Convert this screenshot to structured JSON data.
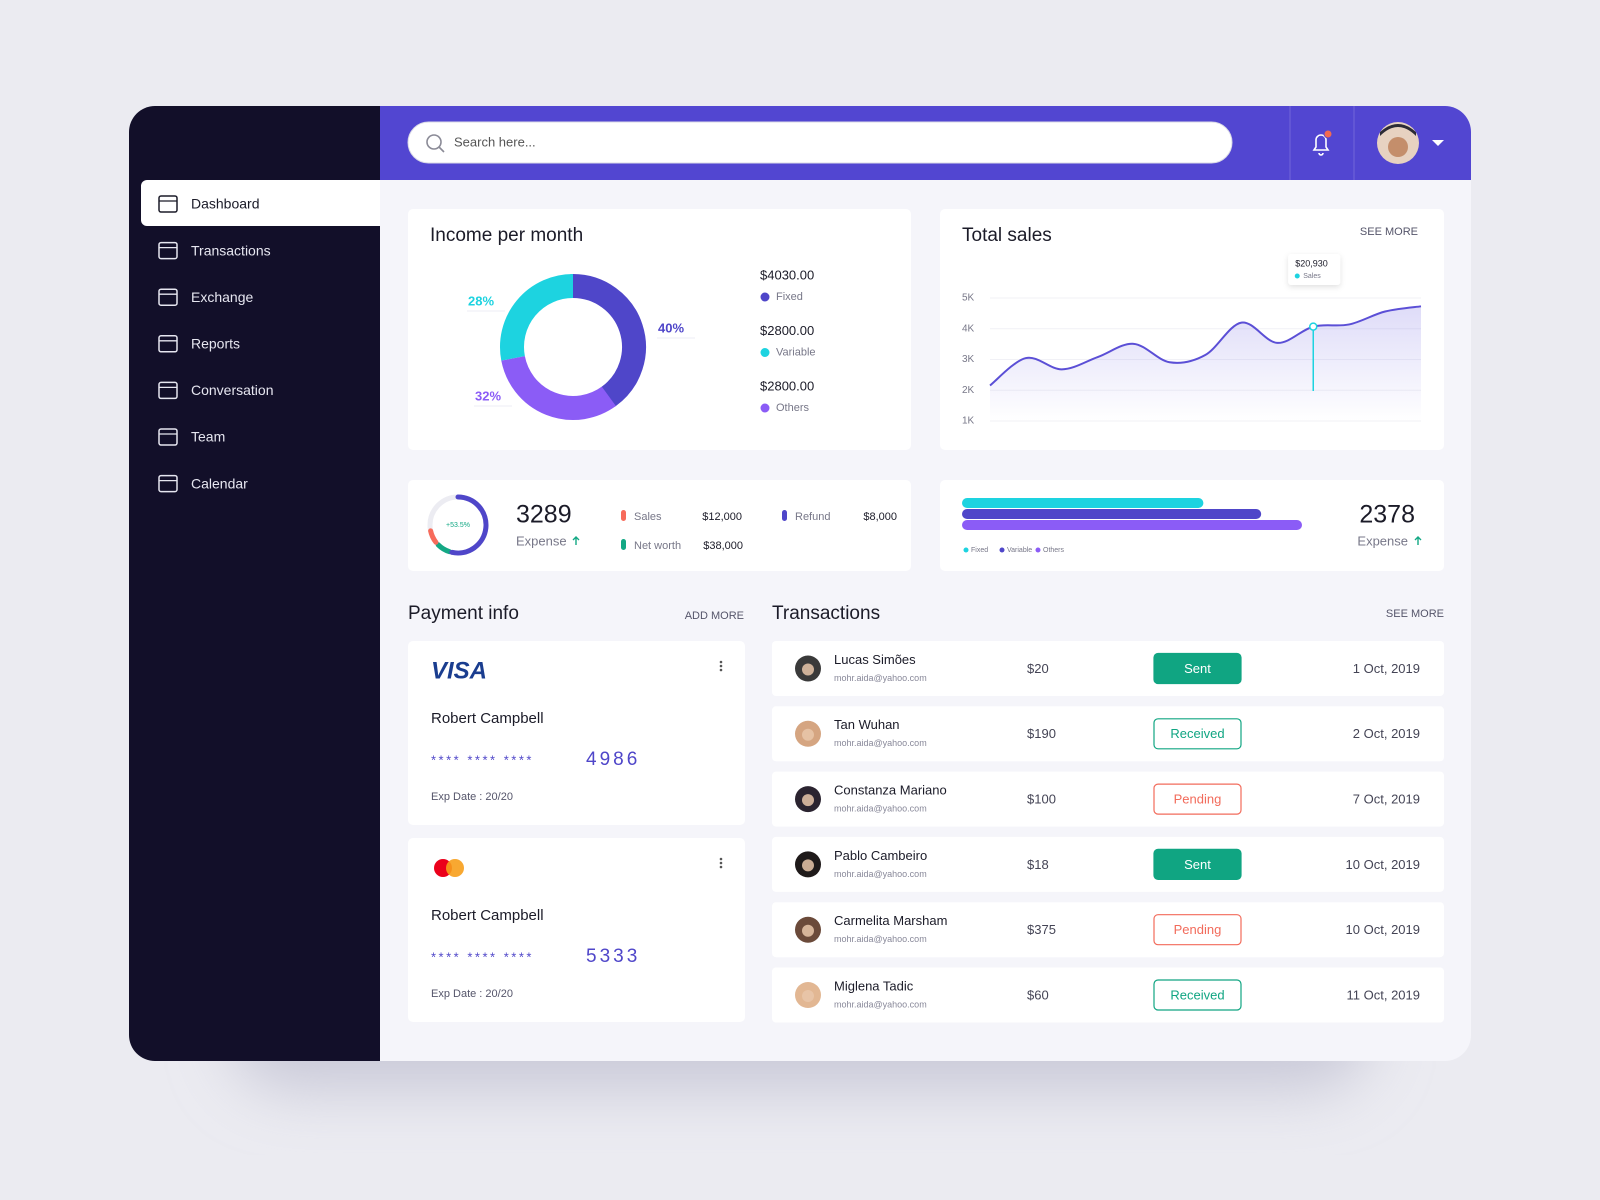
{
  "header": {
    "search_placeholder": "Search here..."
  },
  "nav": [
    {
      "label": "Dashboard",
      "active": true
    },
    {
      "label": "Transactions",
      "active": false
    },
    {
      "label": "Exchange",
      "active": false
    },
    {
      "label": "Reports",
      "active": false
    },
    {
      "label": "Conversation",
      "active": false
    },
    {
      "label": "Team",
      "active": false
    },
    {
      "label": "Calendar",
      "active": false
    }
  ],
  "chart_data": [
    {
      "type": "donut",
      "title": "Income per month",
      "categories": [
        "Fixed",
        "Variable",
        "Others"
      ],
      "values": [
        40,
        28,
        32
      ],
      "value_labels": [
        "40%",
        "28%",
        "32%"
      ],
      "amounts": [
        "$4030.00",
        "$2800.00",
        "$2800.00"
      ],
      "colors": [
        "#4f46c9",
        "#1dd3e0",
        "#8b5cf6"
      ]
    },
    {
      "type": "line",
      "title": "Total sales",
      "link": "SEE MORE",
      "categories": [
        null,
        null,
        null,
        null,
        null,
        null,
        null,
        null,
        null,
        null,
        null,
        null,
        null
      ],
      "series": [
        {
          "name": "Sales",
          "color": "#5b4fd6",
          "values": [
            2155,
            3046,
            2680,
            3080,
            3510,
            2910,
            3150,
            4200,
            3540,
            4070,
            4140,
            4560,
            4730
          ]
        }
      ],
      "ylim": [
        1000,
        5000
      ],
      "yticks": [
        {
          "value": 1000,
          "label": "1K"
        },
        {
          "value": 2000,
          "label": "2K"
        },
        {
          "value": 3000,
          "label": "3K"
        },
        {
          "value": 4000,
          "label": "4K"
        },
        {
          "value": 5000,
          "label": "5K"
        }
      ],
      "grid": true,
      "tooltip": "$20,930",
      "tooltip_color": "#1dd3e0"
    },
    {
      "type": "ring",
      "value": 53.5,
      "value_label": "+53.5%",
      "color": "#4f46c9",
      "label_color": "#13a884",
      "total": 3289,
      "total_label": "Expense",
      "items": [
        {
          "name": "Sales",
          "value": "$12,000",
          "color": "#f76b5b"
        },
        {
          "name": "Refund",
          "value": "$8,000",
          "color": "#4f46c9"
        },
        {
          "name": "Net worth",
          "value": "$38,000",
          "color": "#13a884"
        }
      ]
    },
    {
      "type": "bar",
      "orientation": "horizontal",
      "categories": [
        "Fixed",
        "Variable",
        "Others"
      ],
      "values": [
        71,
        88,
        100
      ],
      "xlim": [
        0,
        100
      ],
      "colors": [
        "#1dd3e0",
        "#4f46c9",
        "#8b5cf6"
      ],
      "total": 2378,
      "total_label": "Expense"
    }
  ],
  "payment": {
    "title": "Payment info",
    "link": "ADD MORE",
    "cards": [
      {
        "brand": "VISA",
        "holder": "Robert Campbell",
        "masked": "**** **** ****",
        "last4": "4986",
        "exp": "Exp Date : 20/20"
      },
      {
        "holder": "Robert Campbell",
        "masked": "**** **** ****",
        "last4": "5333",
        "exp": "Exp Date : 20/20"
      }
    ]
  },
  "transactions": {
    "title": "Transactions",
    "link": "SEE MORE",
    "rows": [
      {
        "name": "Lucas Simões",
        "email": "mohr.aida@yahoo.com",
        "amount": "$20",
        "status": "Sent",
        "status_color": "#10a582",
        "filled": true,
        "date": "1 Oct, 2019"
      },
      {
        "name": "Tan Wuhan",
        "email": "mohr.aida@yahoo.com",
        "amount": "$190",
        "status": "Received",
        "status_color": "#10a582",
        "filled": false,
        "date": "2 Oct, 2019"
      },
      {
        "name": "Constanza Mariano",
        "email": "mohr.aida@yahoo.com",
        "amount": "$100",
        "status": "Pending",
        "status_color": "#f26b5b",
        "filled": false,
        "date": "7 Oct, 2019"
      },
      {
        "name": "Pablo Cambeiro",
        "email": "mohr.aida@yahoo.com",
        "amount": "$18",
        "status": "Sent",
        "status_color": "#10a582",
        "filled": true,
        "date": "10 Oct, 2019"
      },
      {
        "name": "Carmelita Marsham",
        "email": "mohr.aida@yahoo.com",
        "amount": "$375",
        "status": "Pending",
        "status_color": "#f26b5b",
        "filled": false,
        "date": "10 Oct, 2019"
      },
      {
        "name": "Miglena Tadic",
        "email": "mohr.aida@yahoo.com",
        "amount": "$60",
        "status": "Received",
        "status_color": "#10a582",
        "filled": false,
        "date": "11 Oct, 2019"
      }
    ]
  }
}
